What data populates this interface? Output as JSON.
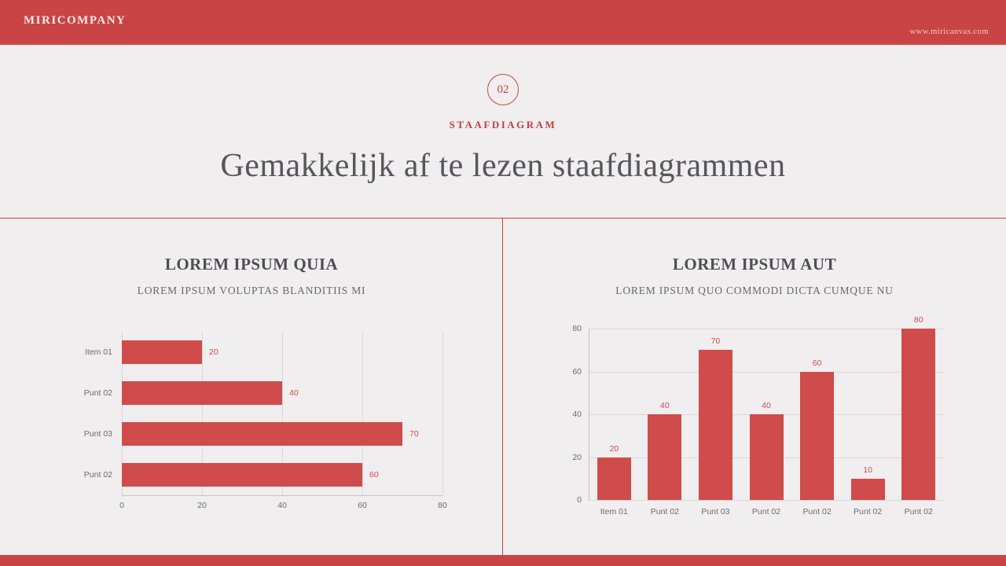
{
  "header": {
    "company": "MIRICOMPANY",
    "website": "www.miricanvas.com"
  },
  "section": {
    "number": "02",
    "label": "STAAFDIAGRAM",
    "title": "Gemakkelijk af te lezen staafdiagrammen"
  },
  "colors": {
    "accent_red": "#c94444",
    "bar_fill": "#d04b4b",
    "grid_line": "#dcd7d7",
    "title_text": "#56575b",
    "label_text": "#6b6b6d"
  },
  "chart_data": [
    {
      "type": "bar",
      "orientation": "horizontal",
      "title": "LOREM IPSUM QUIA",
      "subtitle": "LOREM IPSUM VOLUPTAS BLANDITIIS MI",
      "categories": [
        "Item 01",
        "Punt 02",
        "Punt 03",
        "Punt 02"
      ],
      "values": [
        20,
        40,
        70,
        60
      ],
      "xlim": [
        0,
        80
      ],
      "ticks": [
        0,
        20,
        40,
        60,
        80
      ],
      "grid": true,
      "legend": false
    },
    {
      "type": "bar",
      "orientation": "vertical",
      "title": "LOREM IPSUM AUT",
      "subtitle": "LOREM IPSUM QUO COMMODI DICTA CUMQUE NU",
      "categories": [
        "Item 01",
        "Punt 02",
        "Punt 03",
        "Punt 02",
        "Punt 02",
        "Punt 02",
        "Punt 02"
      ],
      "values": [
        20,
        40,
        70,
        40,
        60,
        10,
        80
      ],
      "ylim": [
        0,
        80
      ],
      "ticks": [
        0,
        20,
        40,
        60,
        80
      ],
      "grid": true,
      "legend": false
    }
  ]
}
